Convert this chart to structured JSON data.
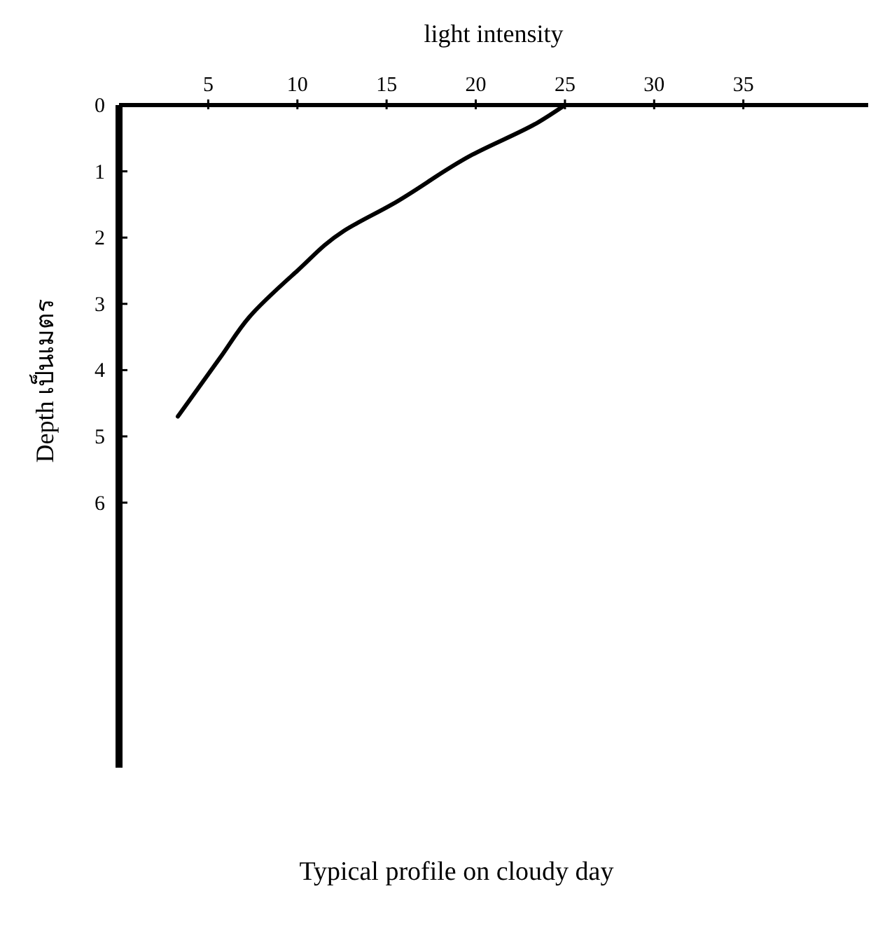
{
  "chart_data": {
    "type": "line",
    "title": "Typical profile on cloudy day",
    "xlabel": "light intensity",
    "ylabel": "Depth เป็นเมตร",
    "x": [
      25,
      23.5,
      19.8,
      15.3,
      12.6,
      10,
      7.3,
      5.7,
      3.3
    ],
    "series": [
      {
        "color": "#000000",
        "values": [
          0,
          0.26,
          0.75,
          1.5,
          1.9,
          2.5,
          3.2,
          3.8,
          4.7
        ]
      }
    ],
    "xlim": [
      0,
      42
    ],
    "xticks": [
      5,
      10,
      15,
      20,
      25,
      30,
      35
    ],
    "ylim": [
      10,
      0
    ],
    "yticks": [
      0,
      1,
      2,
      3,
      4,
      5,
      6
    ],
    "grid": false,
    "marker": "none",
    "line_style": "solid"
  }
}
